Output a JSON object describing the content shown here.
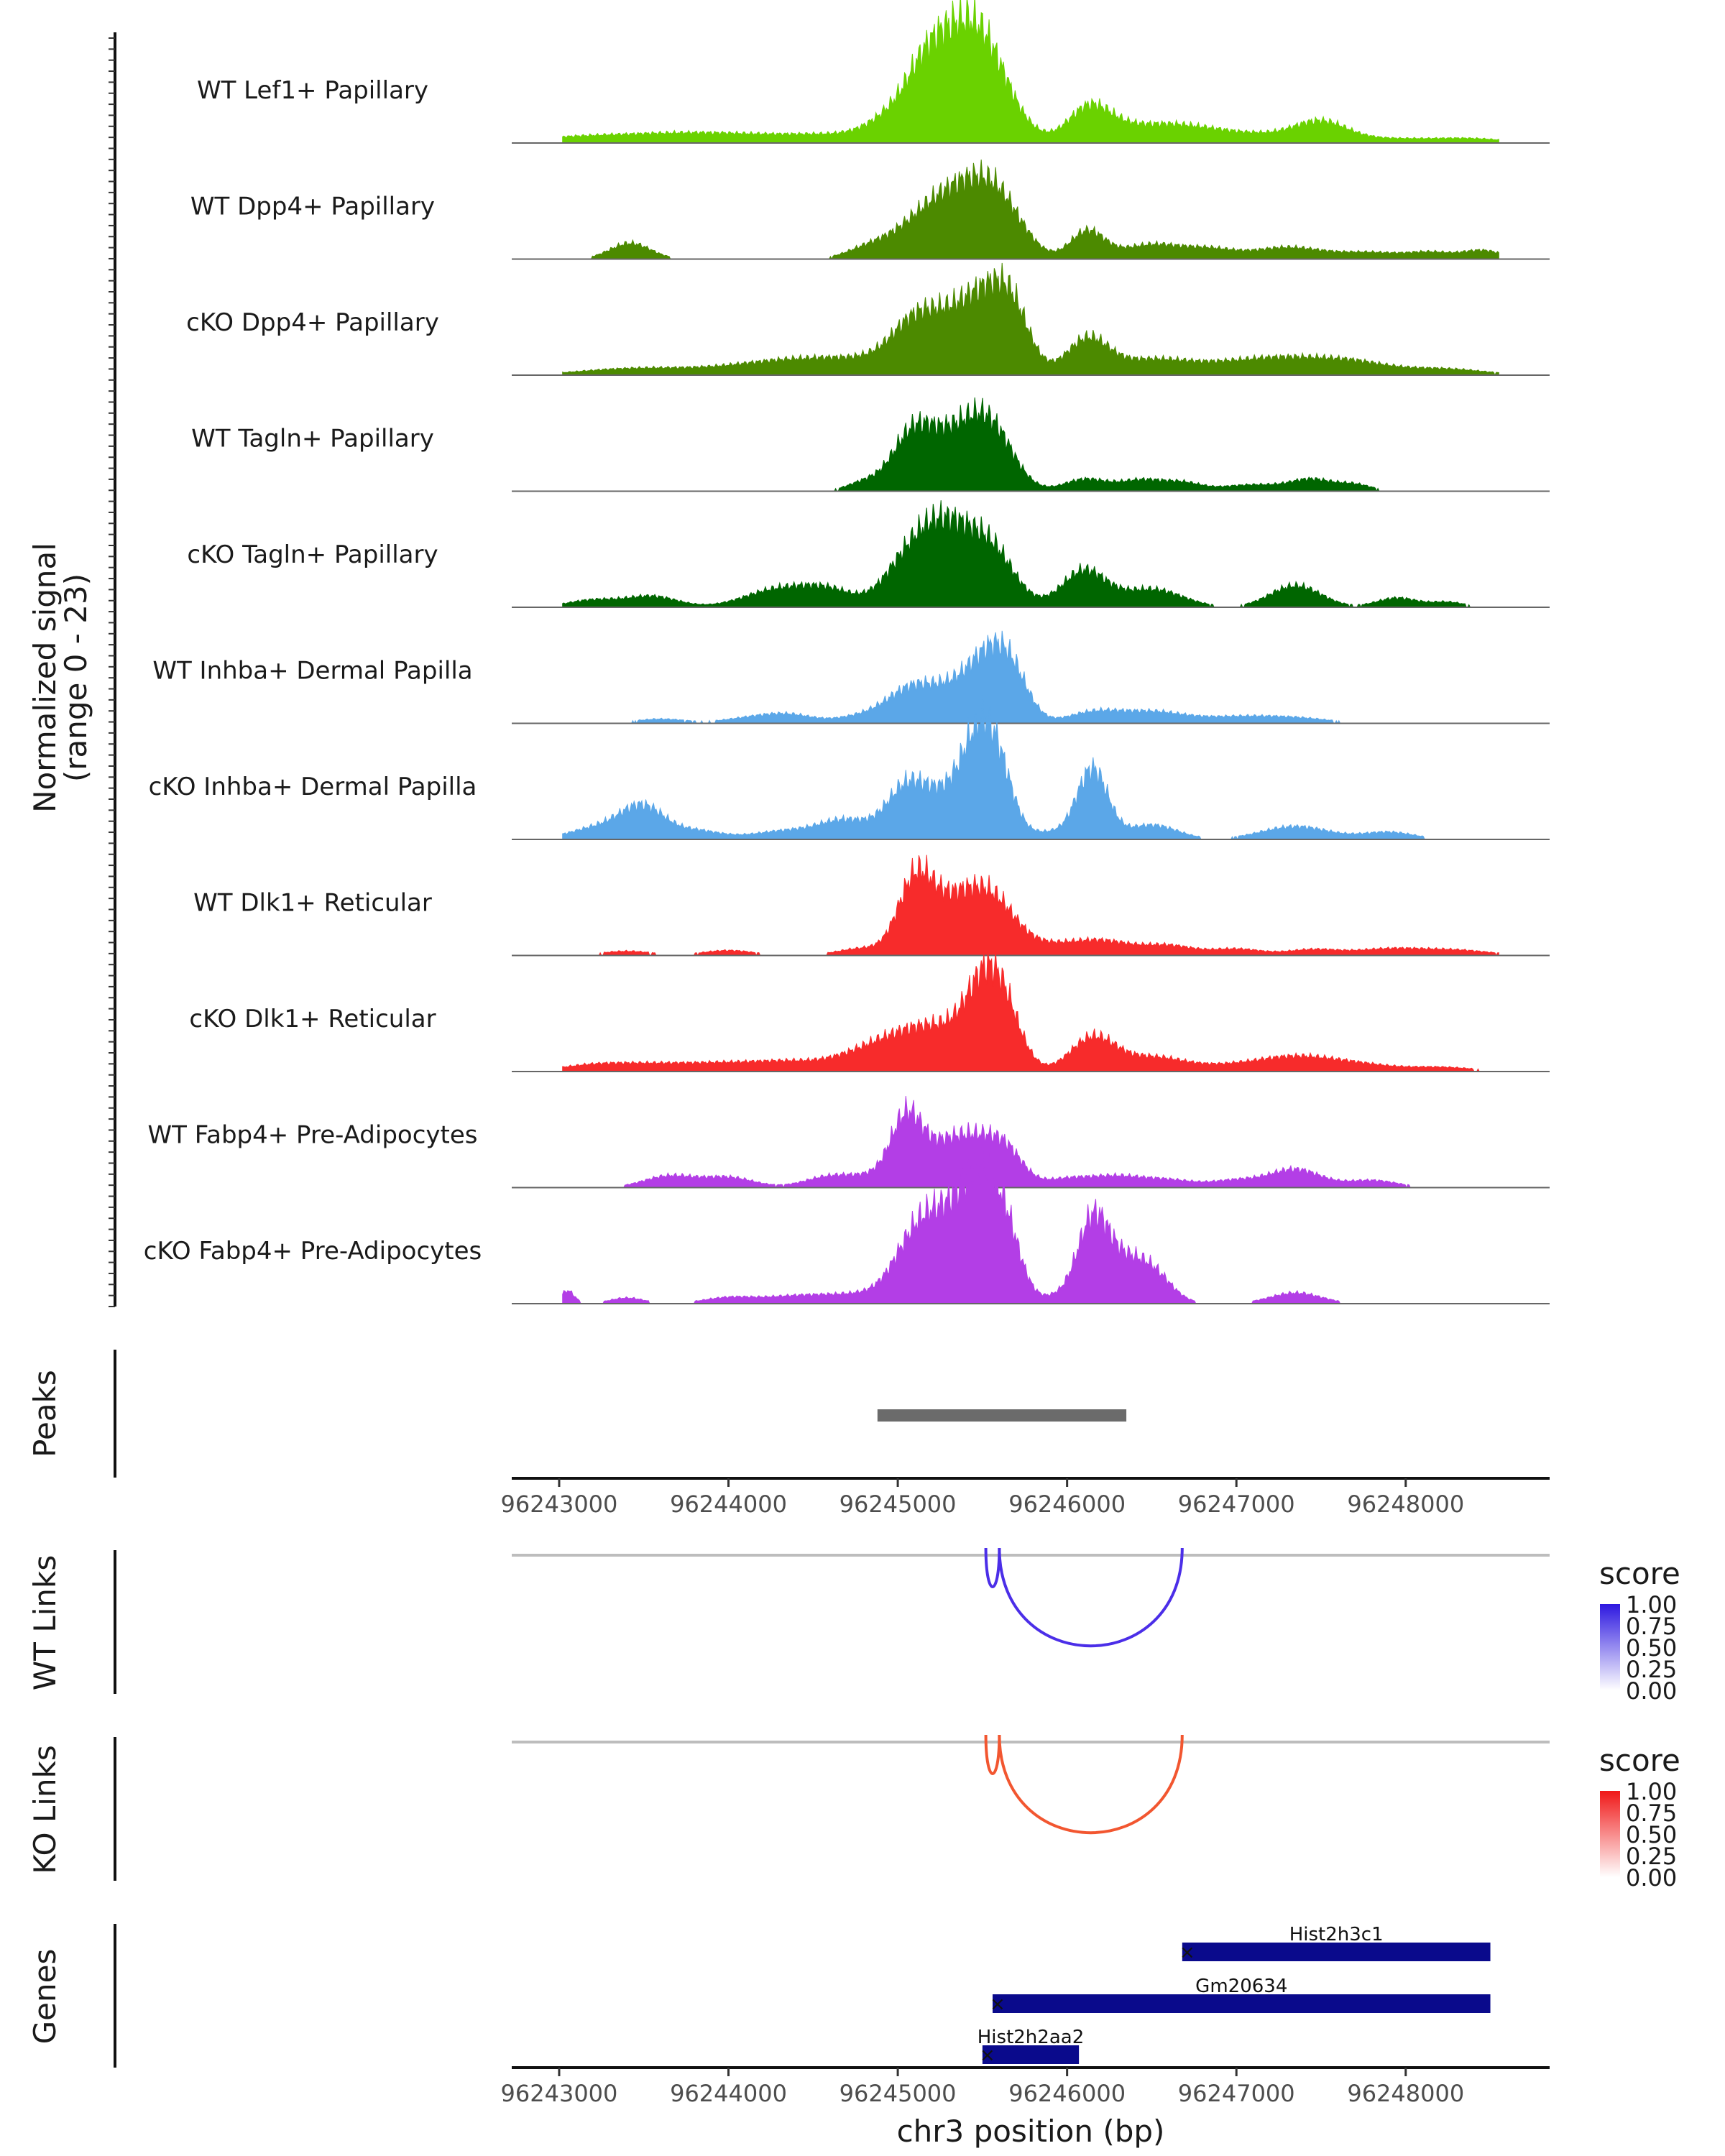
{
  "chart_data": {
    "type": "area",
    "chromosome": "chr3",
    "region": {
      "start": 96242720,
      "end": 96248850
    },
    "y_axis_title": [
      "Normalized signal",
      "(range 0 - 23)"
    ],
    "y_range": [
      0,
      23
    ],
    "x_axis_title": "chr3 position (bp)",
    "x_ticks": [
      96243000,
      96244000,
      96245000,
      96246000,
      96247000,
      96248000
    ],
    "x_tick_labels": [
      "96243000",
      "96244000",
      "96245000",
      "96246000",
      "96247000",
      "96248000"
    ],
    "tracks": [
      {
        "name": "WT Lef1+ Papillary",
        "color": "#6ad200",
        "peaks": [
          [
            96243050,
            0.5,
            300
          ],
          [
            96243700,
            0.6,
            400
          ],
          [
            96244000,
            0.9,
            600
          ],
          [
            96244700,
            0.7,
            300
          ],
          [
            96245000,
            3.5,
            150
          ],
          [
            96245150,
            5.5,
            110
          ],
          [
            96245280,
            7.5,
            120
          ],
          [
            96245400,
            6.5,
            120
          ],
          [
            96245520,
            7.0,
            120
          ],
          [
            96245620,
            4.0,
            150
          ],
          [
            96246120,
            3.8,
            120
          ],
          [
            96246220,
            1.5,
            150
          ],
          [
            96246500,
            1.8,
            200
          ],
          [
            96246750,
            1.0,
            200
          ],
          [
            96247100,
            1.2,
            300
          ],
          [
            96247500,
            2.4,
            150
          ],
          [
            96247900,
            0.6,
            300
          ],
          [
            96248400,
            0.5,
            200
          ]
        ]
      },
      {
        "name": "WT Dpp4+ Papillary",
        "color": "#4c8a00",
        "peaks": [
          [
            96243420,
            2.2,
            120
          ],
          [
            96244800,
            1.0,
            120
          ],
          [
            96245100,
            4.0,
            180
          ],
          [
            96245300,
            5.2,
            150
          ],
          [
            96245500,
            7.2,
            140
          ],
          [
            96245660,
            4.0,
            130
          ],
          [
            96246120,
            3.8,
            100
          ],
          [
            96246500,
            2.0,
            180
          ],
          [
            96246850,
            1.2,
            150
          ],
          [
            96247300,
            1.6,
            200
          ],
          [
            96247800,
            0.9,
            200
          ],
          [
            96248150,
            0.8,
            120
          ],
          [
            96248450,
            1.2,
            120
          ]
        ]
      },
      {
        "name": "cKO Dpp4+ Papillary",
        "color": "#4c8a00",
        "peaks": [
          [
            96243400,
            0.8,
            300
          ],
          [
            96243900,
            0.6,
            300
          ],
          [
            96244250,
            0.9,
            250
          ],
          [
            96244600,
            1.5,
            300
          ],
          [
            96244950,
            1.2,
            300
          ],
          [
            96245100,
            4.5,
            140
          ],
          [
            96245350,
            5.8,
            200
          ],
          [
            96245550,
            7.2,
            150
          ],
          [
            96245680,
            5.0,
            100
          ],
          [
            96246120,
            4.6,
            120
          ],
          [
            96246500,
            2.2,
            250
          ],
          [
            96246950,
            0.8,
            200
          ],
          [
            96247300,
            2.2,
            250
          ],
          [
            96247700,
            1.4,
            200
          ],
          [
            96248200,
            0.9,
            250
          ]
        ]
      },
      {
        "name": "WT Tagln+ Papillary",
        "color": "#006600",
        "peaks": [
          [
            96244800,
            1.2,
            100
          ],
          [
            96245080,
            6.5,
            120
          ],
          [
            96245350,
            7.5,
            180
          ],
          [
            96245560,
            6.2,
            130
          ],
          [
            96246100,
            1.6,
            120
          ],
          [
            96246450,
            1.6,
            150
          ],
          [
            96246700,
            0.8,
            100
          ],
          [
            96247100,
            0.9,
            200
          ],
          [
            96247450,
            1.5,
            120
          ],
          [
            96247700,
            0.9,
            100
          ]
        ]
      },
      {
        "name": "cKO Tagln+ Papillary",
        "color": "#006600",
        "peaks": [
          [
            96243200,
            1.0,
            150
          ],
          [
            96243550,
            1.5,
            150
          ],
          [
            96244300,
            2.5,
            200
          ],
          [
            96244600,
            2.0,
            150
          ],
          [
            96245050,
            5.5,
            140
          ],
          [
            96245280,
            10.0,
            150
          ],
          [
            96245550,
            7.5,
            140
          ],
          [
            96246100,
            5.0,
            130
          ],
          [
            96246500,
            2.5,
            180
          ],
          [
            96247350,
            3.0,
            150
          ],
          [
            96247950,
            1.3,
            120
          ],
          [
            96248250,
            0.7,
            100
          ]
        ]
      },
      {
        "name": "WT Inhba+ Dermal Papilla",
        "color": "#5ba7e8",
        "peaks": [
          [
            96243600,
            0.6,
            150
          ],
          [
            96244100,
            0.6,
            150
          ],
          [
            96244350,
            1.2,
            150
          ],
          [
            96244800,
            1.0,
            150
          ],
          [
            96245050,
            2.5,
            130
          ],
          [
            96245280,
            4.5,
            200
          ],
          [
            96245550,
            7.5,
            130
          ],
          [
            96245680,
            4.0,
            100
          ],
          [
            96246150,
            1.4,
            150
          ],
          [
            96246500,
            1.6,
            200
          ],
          [
            96247000,
            0.8,
            200
          ],
          [
            96247350,
            0.7,
            200
          ]
        ]
      },
      {
        "name": "cKO Inhba+ Dermal Papilla",
        "color": "#5ba7e8",
        "peaks": [
          [
            96243300,
            2.0,
            200
          ],
          [
            96243500,
            3.5,
            120
          ],
          [
            96243800,
            1.2,
            150
          ],
          [
            96244350,
            1.2,
            200
          ],
          [
            96244700,
            2.5,
            150
          ],
          [
            96245050,
            6.5,
            120
          ],
          [
            96245300,
            5.5,
            150
          ],
          [
            96245480,
            11.0,
            100
          ],
          [
            96245600,
            7.0,
            90
          ],
          [
            96245900,
            1.0,
            150
          ],
          [
            96246150,
            9.5,
            90
          ],
          [
            96246500,
            2.0,
            150
          ],
          [
            96247350,
            1.8,
            200
          ],
          [
            96247900,
            1.0,
            150
          ]
        ]
      },
      {
        "name": "WT Dlk1+ Reticular",
        "color": "#f72b2b",
        "peaks": [
          [
            96243400,
            0.6,
            150
          ],
          [
            96244000,
            0.7,
            150
          ],
          [
            96244800,
            1.0,
            150
          ],
          [
            96245100,
            9.0,
            100
          ],
          [
            96245300,
            6.0,
            150
          ],
          [
            96245550,
            7.5,
            150
          ],
          [
            96245900,
            1.0,
            150
          ],
          [
            96246200,
            2.0,
            180
          ],
          [
            96246600,
            1.3,
            150
          ],
          [
            96247000,
            0.9,
            150
          ],
          [
            96247450,
            0.8,
            150
          ],
          [
            96247900,
            0.9,
            200
          ],
          [
            96248300,
            0.7,
            200
          ]
        ]
      },
      {
        "name": "cKO Dlk1+ Reticular",
        "color": "#f72b2b",
        "peaks": [
          [
            96243200,
            0.8,
            200
          ],
          [
            96243600,
            1.0,
            250
          ],
          [
            96244000,
            0.8,
            200
          ],
          [
            96244350,
            1.2,
            200
          ],
          [
            96244800,
            2.0,
            200
          ],
          [
            96245050,
            3.0,
            200
          ],
          [
            96245300,
            4.5,
            200
          ],
          [
            96245520,
            10.0,
            110
          ],
          [
            96245650,
            5.0,
            100
          ],
          [
            96246150,
            4.5,
            130
          ],
          [
            96246500,
            2.0,
            200
          ],
          [
            96247000,
            0.8,
            200
          ],
          [
            96247350,
            1.8,
            200
          ],
          [
            96247700,
            1.0,
            200
          ],
          [
            96248200,
            0.6,
            200
          ]
        ]
      },
      {
        "name": "WT Fabp4+ Pre-Adipocytes",
        "color": "#b33ee6",
        "peaks": [
          [
            96243650,
            1.6,
            150
          ],
          [
            96244000,
            1.4,
            150
          ],
          [
            96244600,
            1.5,
            150
          ],
          [
            96244900,
            1.5,
            150
          ],
          [
            96245050,
            8.0,
            90
          ],
          [
            96245280,
            5.5,
            150
          ],
          [
            96245500,
            4.5,
            130
          ],
          [
            96245650,
            3.5,
            100
          ],
          [
            96246000,
            1.2,
            150
          ],
          [
            96246300,
            1.4,
            150
          ],
          [
            96246600,
            1.0,
            150
          ],
          [
            96247000,
            1.0,
            150
          ],
          [
            96247350,
            2.5,
            150
          ],
          [
            96247800,
            1.0,
            150
          ]
        ]
      },
      {
        "name": "cKO Fabp4+ Pre-Adipocytes",
        "color": "#b33ee6",
        "peaks": [
          [
            96243050,
            1.8,
            40
          ],
          [
            96243400,
            0.8,
            100
          ],
          [
            96244000,
            0.8,
            150
          ],
          [
            96244400,
            1.0,
            200
          ],
          [
            96244800,
            1.2,
            200
          ],
          [
            96245100,
            7.0,
            130
          ],
          [
            96245300,
            9.0,
            150
          ],
          [
            96245500,
            14.0,
            120
          ],
          [
            96245650,
            6.0,
            90
          ],
          [
            96245950,
            1.0,
            100
          ],
          [
            96246150,
            11.0,
            90
          ],
          [
            96246300,
            4.0,
            100
          ],
          [
            96246480,
            5.0,
            120
          ],
          [
            96247350,
            1.5,
            150
          ]
        ]
      }
    ],
    "peaks_track": {
      "title": "Peaks",
      "regions": [
        [
          96244880,
          96246350
        ]
      ],
      "color": "#6b6b6b"
    },
    "links": [
      {
        "title": "WT Links",
        "color": "#4b2ee8",
        "arcs": [
          [
            96245520,
            96245600,
            1.0
          ],
          [
            96245600,
            96246680,
            1.0
          ]
        ],
        "legend": {
          "title": "score",
          "labels": [
            "1.00",
            "0.75",
            "0.50",
            "0.25",
            "0.00"
          ],
          "low_color": "#ffffff",
          "high_color": "#2d18e0"
        }
      },
      {
        "title": "KO Links",
        "color": "#f25630",
        "arcs": [
          [
            96245520,
            96245600,
            1.0
          ],
          [
            96245600,
            96246680,
            1.0
          ]
        ],
        "legend": {
          "title": "score",
          "labels": [
            "1.00",
            "0.75",
            "0.50",
            "0.25",
            "0.00"
          ],
          "low_color": "#ffffff",
          "high_color": "#f01818"
        }
      }
    ],
    "genes_track": {
      "title": "Genes",
      "color": "#0a0a8c",
      "genes": [
        {
          "name": "Hist2h3c1",
          "start": 96246680,
          "end": 96248500
        },
        {
          "name": "Gm20634",
          "start": 96245560,
          "end": 96248500
        },
        {
          "name": "Hist2h2aa2",
          "start": 96245500,
          "end": 96246070
        }
      ]
    }
  }
}
